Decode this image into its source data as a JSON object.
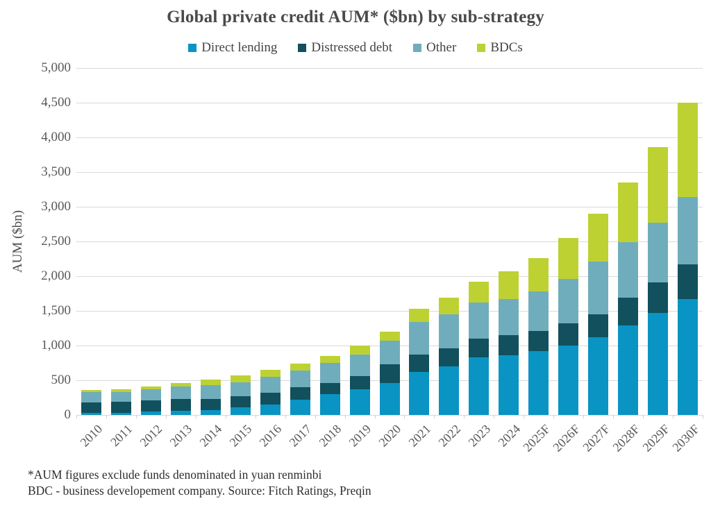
{
  "title": "Global private credit AUM* ($bn) by sub-strategy",
  "y_axis_title": "AUM ($bn)",
  "footnotes": {
    "line1": "*AUM figures exclude funds denominated in yuan renminbi",
    "line2": "BDC - business developement company. Source: Fitch Ratings, Preqin"
  },
  "colors": {
    "direct_lending": "#0994c4",
    "distressed_debt": "#11505c",
    "other": "#70adbc",
    "bdcs": "#bdd133",
    "gridline": "#d9d9d9",
    "axis_text": "#595959",
    "title_text": "#4a4a4a"
  },
  "chart_data": {
    "type": "bar",
    "stacked": true,
    "title": "Global private credit AUM* ($bn) by sub-strategy",
    "xlabel": "",
    "ylabel": "AUM ($bn)",
    "ylim": [
      0,
      5000
    ],
    "ytick_interval": 500,
    "grid": true,
    "legend_position": "top",
    "categories": [
      "2010",
      "2011",
      "2012",
      "2013",
      "2014",
      "2015",
      "2016",
      "2017",
      "2018",
      "2019",
      "2020",
      "2021",
      "2022",
      "2023",
      "2024",
      "2025F",
      "2026F",
      "2027F",
      "2028F",
      "2029F",
      "2030F"
    ],
    "series": [
      {
        "name": "Direct lending",
        "color": "#0994c4",
        "values": [
          30,
          35,
          50,
          65,
          75,
          110,
          155,
          220,
          305,
          375,
          460,
          620,
          700,
          830,
          865,
          925,
          1005,
          1125,
          1295,
          1470,
          1670
        ]
      },
      {
        "name": "Distressed debt",
        "color": "#11505c",
        "values": [
          155,
          160,
          160,
          170,
          160,
          165,
          170,
          180,
          155,
          185,
          270,
          255,
          265,
          270,
          285,
          285,
          315,
          330,
          395,
          445,
          505
        ]
      },
      {
        "name": "Other",
        "color": "#70adbc",
        "values": [
          145,
          140,
          160,
          175,
          195,
          200,
          230,
          240,
          295,
          315,
          345,
          465,
          490,
          525,
          525,
          575,
          645,
          760,
          805,
          860,
          965
        ]
      },
      {
        "name": "BDCs",
        "color": "#bdd133",
        "values": [
          30,
          35,
          40,
          55,
          80,
          95,
          100,
          100,
          100,
          130,
          125,
          195,
          240,
          300,
          395,
          475,
          585,
          690,
          855,
          1090,
          1365
        ]
      }
    ],
    "totals": [
      360,
      370,
      410,
      465,
      510,
      570,
      655,
      740,
      855,
      1005,
      1200,
      1535,
      1695,
      1925,
      2070,
      2260,
      2550,
      2905,
      3350,
      3865,
      4505
    ]
  }
}
